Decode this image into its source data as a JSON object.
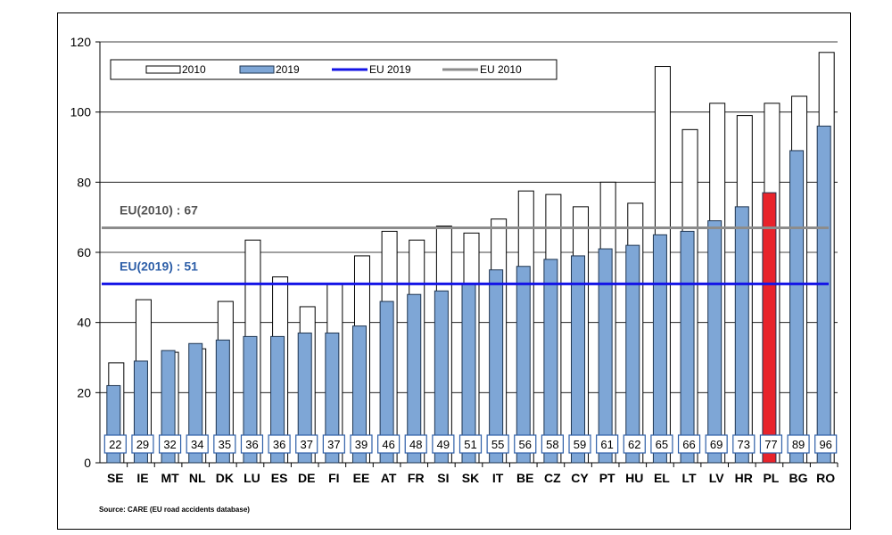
{
  "chart_data": {
    "type": "bar",
    "categories": [
      "SE",
      "IE",
      "MT",
      "NL",
      "DK",
      "LU",
      "ES",
      "DE",
      "FI",
      "EE",
      "AT",
      "FR",
      "SI",
      "SK",
      "IT",
      "BE",
      "CZ",
      "CY",
      "PT",
      "HU",
      "EL",
      "LT",
      "LV",
      "HR",
      "PL",
      "BG",
      "RO"
    ],
    "series": [
      {
        "name": "2010",
        "values": [
          28.5,
          46.5,
          31.5,
          32.5,
          46,
          63.5,
          53,
          44.5,
          51,
          59,
          66,
          63.5,
          67.5,
          65.5,
          69.5,
          77.5,
          76.5,
          73,
          80,
          74,
          113,
          95,
          102.5,
          99,
          102.5,
          104.5,
          117
        ],
        "color": "#ffffff"
      },
      {
        "name": "2019",
        "values": [
          22,
          29,
          32,
          34,
          35,
          36,
          36,
          37,
          37,
          39,
          46,
          48,
          49,
          51,
          55,
          56,
          58,
          59,
          61,
          62,
          65,
          66,
          69,
          73,
          77,
          89,
          96
        ],
        "color": "#7ea6d6"
      }
    ],
    "data_labels": [
      "22",
      "29",
      "32",
      "34",
      "35",
      "36",
      "36",
      "37",
      "37",
      "39",
      "46",
      "48",
      "49",
      "51",
      "55",
      "56",
      "58",
      "59",
      "61",
      "62",
      "65",
      "66",
      "69",
      "73",
      "77",
      "89",
      "96"
    ],
    "highlight_category": "PL",
    "highlight_color": "#e8232b",
    "reference_lines": [
      {
        "name": "EU 2019",
        "value": 51,
        "label": "EU(2019) : 51",
        "color": "#1414e6"
      },
      {
        "name": "EU 2010",
        "value": 67,
        "label": "EU(2010) : 67",
        "color": "#8c8c8c"
      }
    ],
    "legend": [
      "2010",
      "2019",
      "EU 2019",
      "EU 2010"
    ],
    "legend_position": "top-left",
    "ylim": [
      0,
      120
    ],
    "yticks": [
      0,
      20,
      40,
      60,
      80,
      100,
      120
    ],
    "grid": true,
    "title": "",
    "xlabel": "",
    "ylabel": "",
    "source": "Source: CARE (EU road accidents database)"
  }
}
